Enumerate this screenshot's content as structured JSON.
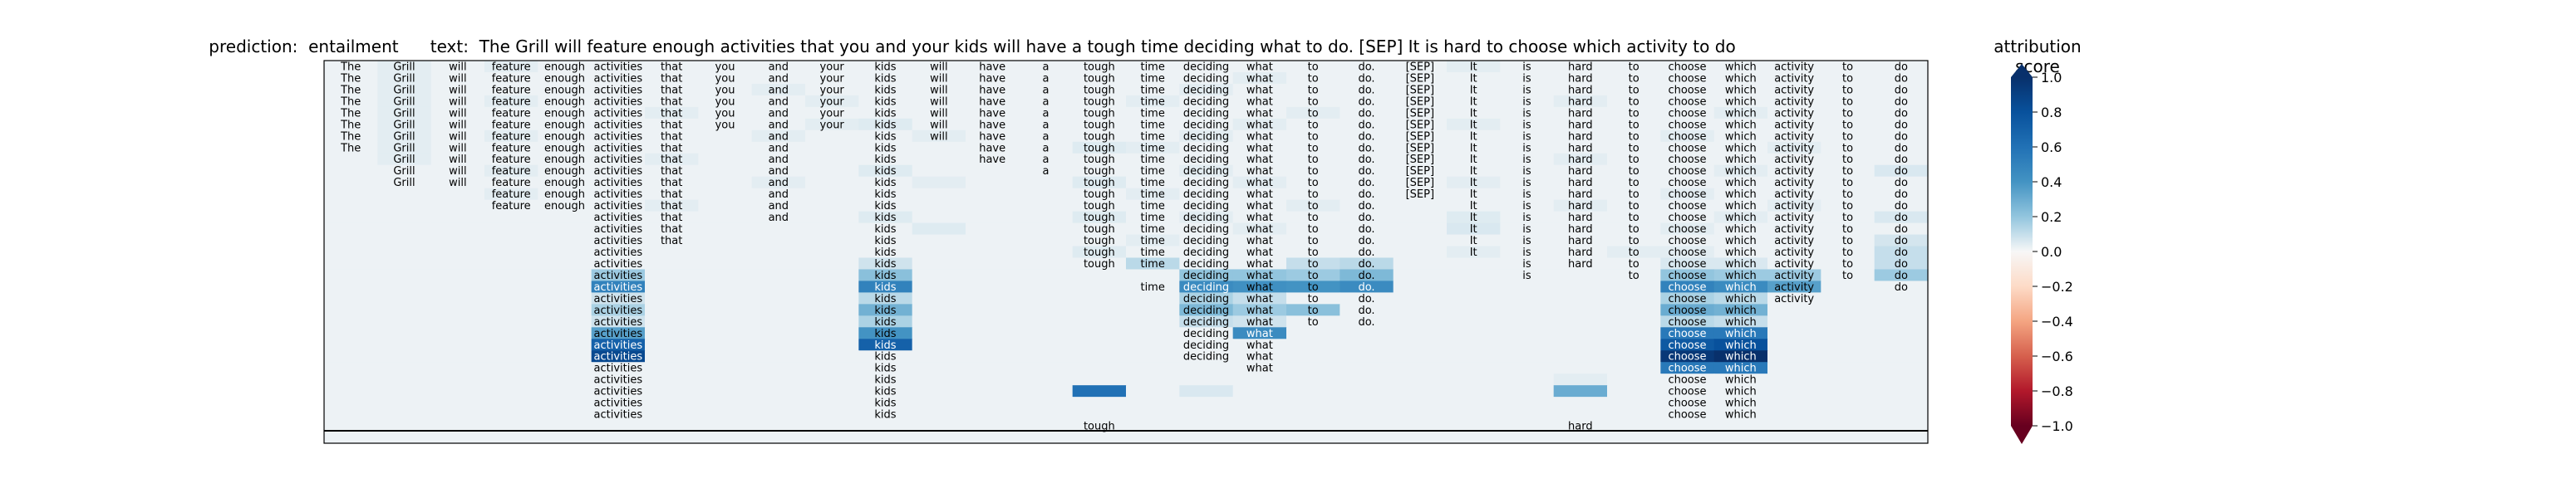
{
  "header": {
    "prediction_label": "prediction:",
    "prediction": "entailment",
    "text_label": "text:",
    "text": "The Grill will feature enough activities that you and your kids will have a tough time deciding what to do. [SEP] It is hard to choose which activity to do"
  },
  "colorbar": {
    "title": "attribution score",
    "ticks": [
      "1.0",
      "0.8",
      "0.6",
      "0.4",
      "0.2",
      "0.0",
      "−0.2",
      "−0.4",
      "−0.6",
      "−0.8",
      "−1.0"
    ],
    "tick_values": [
      1.0,
      0.8,
      0.6,
      0.4,
      0.2,
      0.0,
      -0.2,
      -0.4,
      -0.6,
      -0.8,
      -1.0
    ],
    "colors": {
      "positive_max": "#08306b",
      "zero": "#f7f7f7",
      "negative_max": "#67001f"
    }
  },
  "chart_data": {
    "type": "heatmap",
    "tokens": [
      "The",
      "Grill",
      "will",
      "feature",
      "enough",
      "activities",
      "that",
      "you",
      "and",
      "your",
      "kids",
      "will",
      "have",
      "a",
      "tough",
      "time",
      "deciding",
      "what",
      "to",
      "do.",
      "[SEP]",
      "It",
      "is",
      "hard",
      "to",
      "choose",
      "which",
      "activity",
      "to",
      "do"
    ],
    "row_starts": [
      0,
      0,
      0,
      0,
      0,
      0,
      0,
      0,
      1,
      1,
      1,
      3,
      3,
      5,
      5,
      5,
      5,
      5,
      5,
      5,
      5,
      5,
      5,
      5,
      5,
      5,
      5,
      5,
      5,
      5,
      5,
      14,
      30
    ],
    "row_ends": [
      29,
      29,
      29,
      29,
      29,
      29,
      29,
      29,
      29,
      29,
      29,
      29,
      29,
      29,
      29,
      29,
      29,
      29,
      29,
      29,
      29,
      29,
      29,
      29,
      29,
      29,
      29,
      29,
      29,
      29,
      29,
      30,
      30
    ],
    "row_drop": [
      [],
      [],
      [],
      [],
      [],
      [],
      [
        7,
        9
      ],
      [
        7,
        9,
        11
      ],
      [
        7,
        9,
        11
      ],
      [
        7,
        9,
        11,
        12
      ],
      [
        7,
        9,
        11,
        12,
        13
      ],
      [
        7,
        9,
        11,
        12,
        13
      ],
      [
        7,
        9,
        11,
        12,
        13,
        20
      ],
      [
        7,
        9,
        11,
        12,
        13,
        20
      ],
      [
        7,
        8,
        9,
        11,
        12,
        13,
        20
      ],
      [
        7,
        8,
        9,
        11,
        12,
        13,
        20
      ],
      [
        6,
        7,
        8,
        9,
        11,
        12,
        13,
        20
      ],
      [
        6,
        7,
        8,
        9,
        11,
        12,
        13,
        20,
        21
      ],
      [
        6,
        7,
        8,
        9,
        11,
        12,
        13,
        14,
        15,
        20,
        21,
        23
      ],
      [
        6,
        7,
        8,
        9,
        11,
        12,
        13,
        14,
        20,
        21,
        22,
        23,
        24,
        28
      ],
      [
        6,
        7,
        8,
        9,
        11,
        12,
        13,
        14,
        15,
        20,
        21,
        22,
        23,
        24,
        28,
        29
      ],
      [
        6,
        7,
        8,
        9,
        11,
        12,
        13,
        14,
        15,
        20,
        21,
        22,
        23,
        24,
        27,
        28,
        29
      ],
      [
        6,
        7,
        8,
        9,
        11,
        12,
        13,
        14,
        15,
        20,
        21,
        22,
        23,
        24,
        27,
        28,
        29
      ],
      [
        6,
        7,
        8,
        9,
        11,
        12,
        13,
        14,
        15,
        18,
        19,
        20,
        21,
        22,
        23,
        24,
        27,
        28,
        29
      ],
      [
        6,
        7,
        8,
        9,
        11,
        12,
        13,
        14,
        15,
        18,
        19,
        20,
        21,
        22,
        23,
        24,
        27,
        28,
        29
      ],
      [
        6,
        7,
        8,
        9,
        11,
        12,
        13,
        14,
        15,
        18,
        19,
        20,
        21,
        22,
        23,
        24,
        27,
        28,
        29
      ],
      [
        6,
        7,
        8,
        9,
        11,
        12,
        13,
        14,
        15,
        16,
        18,
        19,
        20,
        21,
        22,
        23,
        24,
        27,
        28,
        29
      ],
      [
        6,
        7,
        8,
        9,
        11,
        12,
        13,
        14,
        15,
        16,
        17,
        18,
        19,
        20,
        21,
        22,
        23,
        24,
        27,
        28,
        29
      ],
      [
        6,
        7,
        8,
        9,
        11,
        12,
        13,
        14,
        15,
        16,
        17,
        18,
        19,
        20,
        21,
        22,
        23,
        24,
        27,
        28,
        29
      ],
      [
        6,
        7,
        8,
        9,
        11,
        12,
        13,
        14,
        15,
        16,
        17,
        18,
        19,
        20,
        21,
        22,
        23,
        24,
        27,
        28,
        29
      ],
      [
        6,
        7,
        8,
        9,
        11,
        12,
        13,
        14,
        15,
        16,
        17,
        18,
        19,
        20,
        21,
        22,
        23,
        24,
        27,
        28,
        29
      ],
      [],
      []
    ],
    "row_fixed": [
      [],
      [],
      [],
      [],
      [],
      [],
      [],
      [],
      [],
      [],
      [],
      [],
      [],
      [],
      [],
      [],
      [],
      [],
      [],
      [],
      [],
      [],
      [],
      [],
      [],
      [],
      [],
      [],
      [],
      [],
      [],
      [
        14,
        23
      ],
      []
    ],
    "tinted_cells": [
      {
        "row": 0,
        "col": 1,
        "value": 0.04
      },
      {
        "row": 1,
        "col": 1,
        "value": 0.04
      },
      {
        "row": 2,
        "col": 1,
        "value": 0.04
      },
      {
        "row": 3,
        "col": 1,
        "value": 0.04
      },
      {
        "row": 4,
        "col": 1,
        "value": 0.04
      },
      {
        "row": 5,
        "col": 1,
        "value": 0.04
      },
      {
        "row": 6,
        "col": 1,
        "value": 0.04
      },
      {
        "row": 7,
        "col": 1,
        "value": 0.04
      },
      {
        "row": 8,
        "col": 1,
        "value": 0.04
      },
      {
        "row": 0,
        "col": 3,
        "value": 0.04
      },
      {
        "row": 3,
        "col": 3,
        "value": 0.04
      },
      {
        "row": 6,
        "col": 3,
        "value": 0.04
      },
      {
        "row": 9,
        "col": 3,
        "value": 0.04
      },
      {
        "row": 11,
        "col": 3,
        "value": 0.04
      },
      {
        "row": 4,
        "col": 6,
        "value": 0.04
      },
      {
        "row": 8,
        "col": 6,
        "value": 0.04
      },
      {
        "row": 12,
        "col": 6,
        "value": 0.04
      },
      {
        "row": 2,
        "col": 8,
        "value": 0.04
      },
      {
        "row": 6,
        "col": 8,
        "value": 0.04
      },
      {
        "row": 10,
        "col": 8,
        "value": 0.04
      },
      {
        "row": 3,
        "col": 9,
        "value": 0.04
      },
      {
        "row": 5,
        "col": 9,
        "value": 0.04
      },
      {
        "row": 5,
        "col": 10,
        "value": 0.05
      },
      {
        "row": 9,
        "col": 10,
        "value": 0.05
      },
      {
        "row": 13,
        "col": 10,
        "value": 0.05
      },
      {
        "row": 6,
        "col": 11,
        "value": 0.04
      },
      {
        "row": 10,
        "col": 11,
        "value": 0.04
      },
      {
        "row": 14,
        "col": 11,
        "value": 0.05
      },
      {
        "row": 7,
        "col": 14,
        "value": 0.05
      },
      {
        "row": 10,
        "col": 14,
        "value": 0.05
      },
      {
        "row": 13,
        "col": 14,
        "value": 0.05
      },
      {
        "row": 16,
        "col": 14,
        "value": 0.05
      },
      {
        "row": 3,
        "col": 15,
        "value": 0.04
      },
      {
        "row": 7,
        "col": 15,
        "value": 0.04
      },
      {
        "row": 11,
        "col": 15,
        "value": 0.04
      },
      {
        "row": 15,
        "col": 15,
        "value": 0.04
      },
      {
        "row": 2,
        "col": 16,
        "value": 0.04
      },
      {
        "row": 6,
        "col": 16,
        "value": 0.04
      },
      {
        "row": 9,
        "col": 16,
        "value": 0.04
      },
      {
        "row": 13,
        "col": 16,
        "value": 0.04
      },
      {
        "row": 1,
        "col": 17,
        "value": 0.04
      },
      {
        "row": 5,
        "col": 17,
        "value": 0.04
      },
      {
        "row": 10,
        "col": 17,
        "value": 0.04
      },
      {
        "row": 14,
        "col": 17,
        "value": 0.04
      },
      {
        "row": 4,
        "col": 18,
        "value": 0.04
      },
      {
        "row": 12,
        "col": 18,
        "value": 0.04
      },
      {
        "row": 0,
        "col": 21,
        "value": 0.04
      },
      {
        "row": 5,
        "col": 21,
        "value": 0.04
      },
      {
        "row": 10,
        "col": 21,
        "value": 0.04
      },
      {
        "row": 13,
        "col": 21,
        "value": 0.05
      },
      {
        "row": 14,
        "col": 21,
        "value": 0.06
      },
      {
        "row": 16,
        "col": 21,
        "value": 0.04
      },
      {
        "row": 3,
        "col": 23,
        "value": 0.04
      },
      {
        "row": 8,
        "col": 23,
        "value": 0.04
      },
      {
        "row": 12,
        "col": 23,
        "value": 0.04
      },
      {
        "row": 6,
        "col": 25,
        "value": 0.04
      },
      {
        "row": 11,
        "col": 25,
        "value": 0.04
      },
      {
        "row": 14,
        "col": 25,
        "value": 0.04
      },
      {
        "row": 16,
        "col": 25,
        "value": 0.04
      },
      {
        "row": 4,
        "col": 26,
        "value": 0.04
      },
      {
        "row": 9,
        "col": 26,
        "value": 0.04
      },
      {
        "row": 13,
        "col": 26,
        "value": 0.04
      },
      {
        "row": 7,
        "col": 27,
        "value": 0.04
      },
      {
        "row": 12,
        "col": 27,
        "value": 0.04
      },
      {
        "row": 9,
        "col": 29,
        "value": 0.06
      },
      {
        "row": 13,
        "col": 29,
        "value": 0.06
      },
      {
        "row": 15,
        "col": 29,
        "value": 0.07
      },
      {
        "row": 16,
        "col": 29,
        "value": 0.1
      },
      {
        "row": 17,
        "col": 29,
        "value": 0.1
      },
      {
        "row": 18,
        "col": 5,
        "value": 0.18
      },
      {
        "row": 19,
        "col": 5,
        "value": 0.5
      },
      {
        "row": 20,
        "col": 5,
        "value": 0.08
      },
      {
        "row": 21,
        "col": 5,
        "value": 0.15
      },
      {
        "row": 22,
        "col": 5,
        "value": 0.08
      },
      {
        "row": 23,
        "col": 5,
        "value": 0.35
      },
      {
        "row": 24,
        "col": 5,
        "value": 0.7
      },
      {
        "row": 25,
        "col": 5,
        "value": 0.85
      },
      {
        "row": 17,
        "col": 10,
        "value": 0.08
      },
      {
        "row": 18,
        "col": 10,
        "value": 0.22
      },
      {
        "row": 19,
        "col": 10,
        "value": 0.5
      },
      {
        "row": 20,
        "col": 10,
        "value": 0.12
      },
      {
        "row": 21,
        "col": 10,
        "value": 0.28
      },
      {
        "row": 22,
        "col": 10,
        "value": 0.15
      },
      {
        "row": 23,
        "col": 10,
        "value": 0.4
      },
      {
        "row": 24,
        "col": 10,
        "value": 0.7
      },
      {
        "row": 17,
        "col": 15,
        "value": 0.12
      },
      {
        "row": 18,
        "col": 16,
        "value": 0.2
      },
      {
        "row": 19,
        "col": 16,
        "value": 0.45
      },
      {
        "row": 20,
        "col": 16,
        "value": 0.15
      },
      {
        "row": 21,
        "col": 16,
        "value": 0.25
      },
      {
        "row": 22,
        "col": 16,
        "value": 0.1
      },
      {
        "row": 18,
        "col": 17,
        "value": 0.2
      },
      {
        "row": 19,
        "col": 17,
        "value": 0.42
      },
      {
        "row": 20,
        "col": 17,
        "value": 0.1
      },
      {
        "row": 21,
        "col": 17,
        "value": 0.18
      },
      {
        "row": 22,
        "col": 17,
        "value": 0.08
      },
      {
        "row": 23,
        "col": 17,
        "value": 0.45
      },
      {
        "row": 17,
        "col": 18,
        "value": 0.1
      },
      {
        "row": 18,
        "col": 18,
        "value": 0.18
      },
      {
        "row": 19,
        "col": 18,
        "value": 0.4
      },
      {
        "row": 21,
        "col": 18,
        "value": 0.22
      },
      {
        "row": 17,
        "col": 19,
        "value": 0.12
      },
      {
        "row": 18,
        "col": 19,
        "value": 0.25
      },
      {
        "row": 19,
        "col": 19,
        "value": 0.45
      },
      {
        "row": 16,
        "col": 24,
        "value": 0.04
      },
      {
        "row": 17,
        "col": 25,
        "value": 0.06
      },
      {
        "row": 18,
        "col": 25,
        "value": 0.2
      },
      {
        "row": 19,
        "col": 25,
        "value": 0.5
      },
      {
        "row": 20,
        "col": 25,
        "value": 0.15
      },
      {
        "row": 21,
        "col": 25,
        "value": 0.3
      },
      {
        "row": 22,
        "col": 25,
        "value": 0.12
      },
      {
        "row": 23,
        "col": 25,
        "value": 0.55
      },
      {
        "row": 24,
        "col": 25,
        "value": 0.75
      },
      {
        "row": 25,
        "col": 25,
        "value": 0.95
      },
      {
        "row": 26,
        "col": 25,
        "value": 0.55
      },
      {
        "row": 17,
        "col": 26,
        "value": 0.06
      },
      {
        "row": 18,
        "col": 26,
        "value": 0.18
      },
      {
        "row": 19,
        "col": 26,
        "value": 0.45
      },
      {
        "row": 20,
        "col": 26,
        "value": 0.12
      },
      {
        "row": 21,
        "col": 26,
        "value": 0.28
      },
      {
        "row": 22,
        "col": 26,
        "value": 0.1
      },
      {
        "row": 23,
        "col": 26,
        "value": 0.55
      },
      {
        "row": 24,
        "col": 26,
        "value": 0.8
      },
      {
        "row": 25,
        "col": 26,
        "value": 1.0
      },
      {
        "row": 26,
        "col": 26,
        "value": 0.55
      },
      {
        "row": 18,
        "col": 27,
        "value": 0.18
      },
      {
        "row": 19,
        "col": 27,
        "value": 0.35
      },
      {
        "row": 18,
        "col": 29,
        "value": 0.18
      },
      {
        "row": 27,
        "col": 14,
        "value": 0.02
      },
      {
        "row": 27,
        "col": 23,
        "value": 0.04
      },
      {
        "row": 28,
        "col": 14,
        "value": 0.6
      },
      {
        "row": 28,
        "col": 16,
        "value": 0.06
      },
      {
        "row": 28,
        "col": 23,
        "value": 0.3
      }
    ],
    "base_value": 0.02,
    "color_range": [
      -1.0,
      1.0
    ]
  }
}
